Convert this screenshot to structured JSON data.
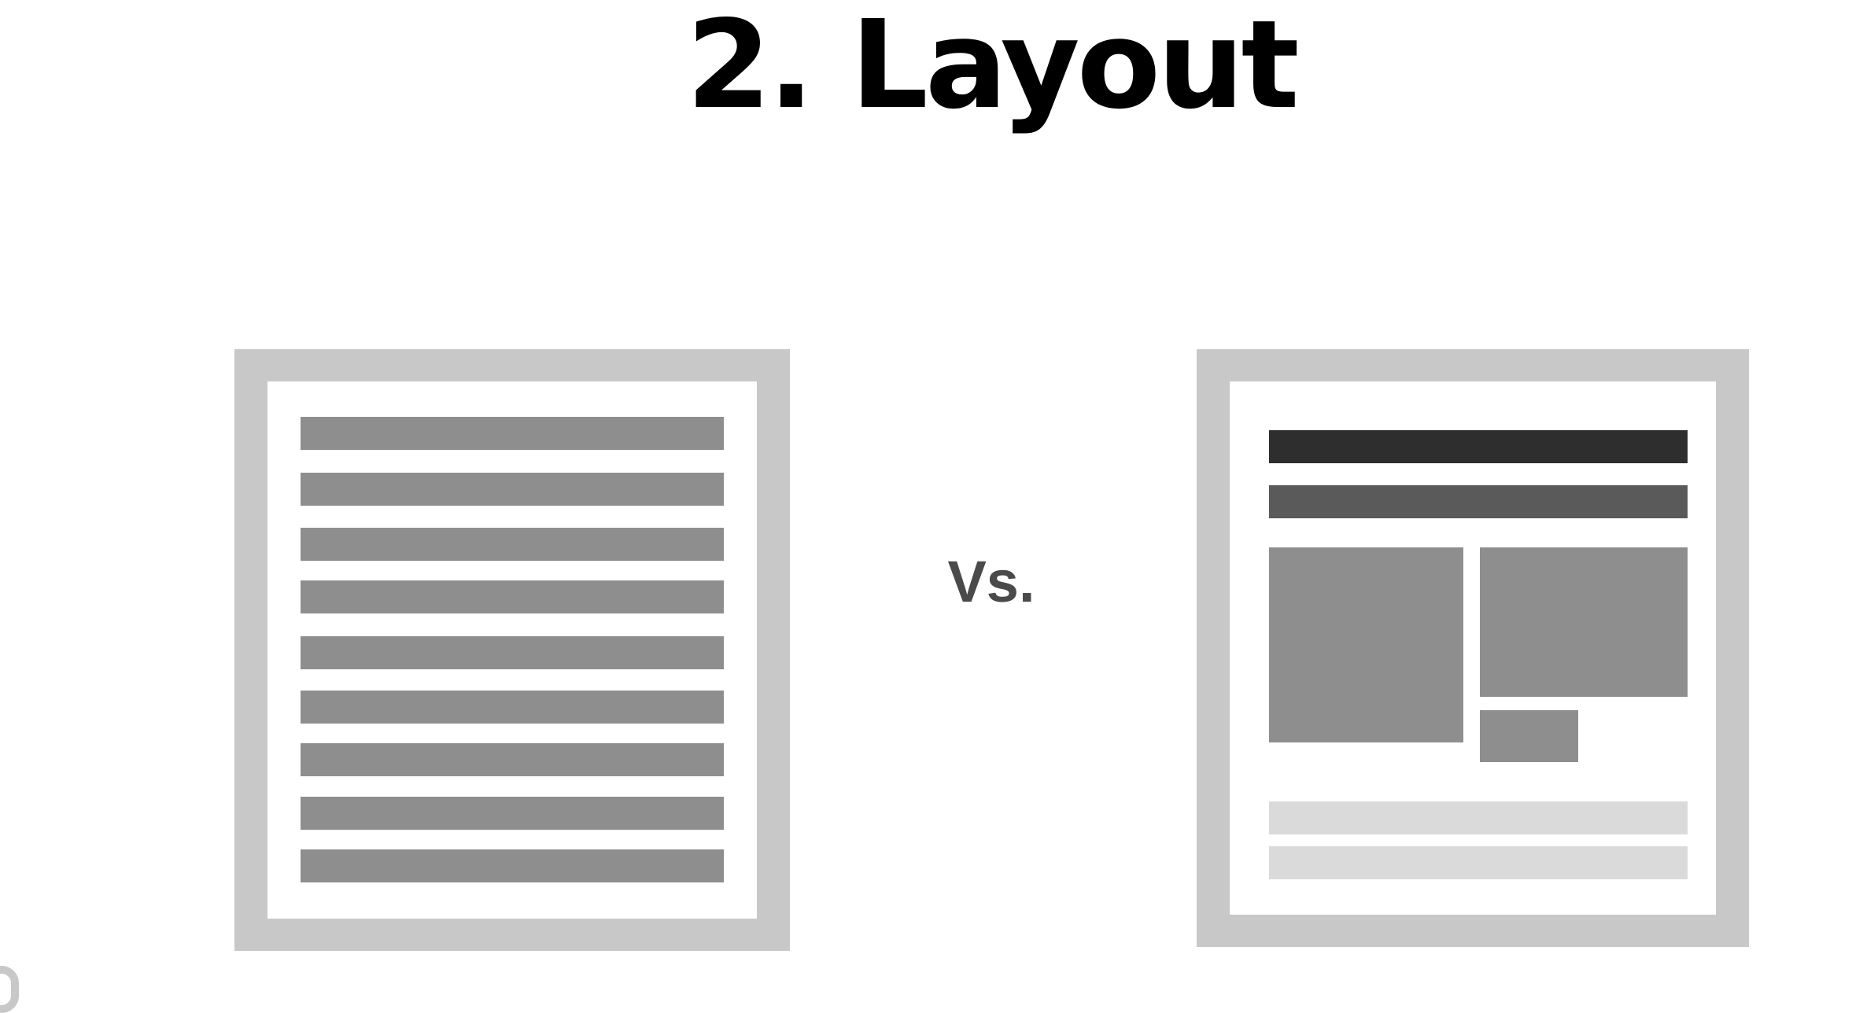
{
  "slide": {
    "title": "2. Layout",
    "vs_label": "Vs."
  },
  "colors": {
    "frame_gray": "#c8c8c8",
    "text_line_gray": "#8e8e8e",
    "headline_dark": "#2e2e2e",
    "subhead_gray": "#5a5a5a",
    "image_block_gray": "#8e8e8e",
    "footer_light_gray": "#dadada"
  },
  "left_document": {
    "description_icon": "plain-text-page-icon",
    "text_line_count": 9
  },
  "right_document": {
    "description_icon": "structured-layout-page-icon"
  }
}
